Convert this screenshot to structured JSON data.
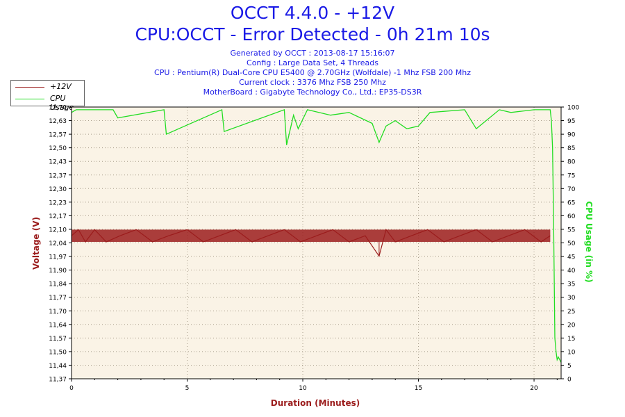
{
  "header": {
    "title": "OCCT 4.4.0 - +12V",
    "subtitle": "CPU:OCCT - Error Detected - 0h 21m 10s",
    "info_lines": [
      "Generated by OCCT : 2013-08-17 15:16:07",
      "Config : Large Data Set, 4 Threads",
      "CPU : Pentium(R) Dual-Core CPU E5400 @ 2.70GHz (Wolfdale) -1 Mhz FSB 200 Mhz",
      "Current clock : 3376 Mhz FSB 250 Mhz",
      "MotherBoard : Gigabyte Technology Co., Ltd.: EP35-DS3R"
    ]
  },
  "legend": {
    "items": [
      {
        "label": "+12V",
        "color": "#9b1c1c"
      },
      {
        "label": "CPU Usage",
        "color": "#22dd22"
      }
    ]
  },
  "colors": {
    "voltage": "#9b1c1c",
    "cpu": "#22dd22",
    "plot_bg": "#faf3e6",
    "grid": "#a89e8c",
    "title": "#1a1ae6"
  },
  "chart_data": {
    "type": "line",
    "xlabel": "Duration (Minutes)",
    "ylabel_left": "Voltage (V)",
    "ylabel_right": "CPU Usage (in %)",
    "xlim": [
      0,
      21.17
    ],
    "x_ticks": [
      0,
      5,
      10,
      15,
      20
    ],
    "ylim_left": [
      11.37,
      12.7
    ],
    "y_ticks_left": [
      "12,70",
      "12,63",
      "12,57",
      "12,50",
      "12,43",
      "12,37",
      "12,30",
      "12,23",
      "12,17",
      "12,10",
      "12,04",
      "11,97",
      "11,90",
      "11,84",
      "11,77",
      "11,70",
      "11,64",
      "11,57",
      "11,50",
      "11,44",
      "11,37"
    ],
    "ylim_right": [
      0,
      100
    ],
    "y_ticks_right": [
      100,
      95,
      90,
      85,
      80,
      75,
      70,
      65,
      60,
      55,
      50,
      45,
      40,
      35,
      30,
      25,
      20,
      15,
      10,
      5,
      0
    ],
    "grid": true,
    "legend_position": "top-left",
    "series": [
      {
        "name": "+12V",
        "units": "V",
        "x": [
          0,
          0.3,
          0.6,
          1.0,
          1.5,
          2.1,
          2.8,
          3.5,
          4.2,
          5.0,
          5.7,
          6.4,
          7.1,
          7.8,
          8.5,
          9.2,
          9.9,
          10.6,
          11.3,
          12.0,
          12.7,
          13.3,
          13.6,
          14.0,
          14.7,
          15.4,
          16.1,
          16.8,
          17.5,
          18.2,
          18.9,
          19.6,
          20.3,
          20.7
        ],
        "values": [
          12.07,
          12.1,
          12.04,
          12.1,
          12.04,
          12.07,
          12.1,
          12.04,
          12.07,
          12.1,
          12.04,
          12.07,
          12.1,
          12.04,
          12.07,
          12.1,
          12.04,
          12.07,
          12.1,
          12.04,
          12.07,
          11.97,
          12.1,
          12.04,
          12.07,
          12.1,
          12.04,
          12.07,
          12.1,
          12.04,
          12.07,
          12.1,
          12.04,
          12.07
        ],
        "band": [
          12.04,
          12.1
        ]
      },
      {
        "name": "CPU Usage",
        "units": "%",
        "x": [
          0,
          0.2,
          1.8,
          2.0,
          4.0,
          4.1,
          6.5,
          6.6,
          9.2,
          9.3,
          9.6,
          9.8,
          10.2,
          11.2,
          12.0,
          13.0,
          13.3,
          13.6,
          14.0,
          14.5,
          15.0,
          15.5,
          17.0,
          17.5,
          18.5,
          19.0,
          20.0,
          20.7,
          20.75,
          20.8,
          20.85,
          20.9,
          20.95,
          21.0,
          21.05,
          21.17
        ],
        "values": [
          98,
          99,
          99,
          96,
          99,
          90,
          99,
          91,
          99,
          86,
          97,
          92,
          99,
          97,
          98,
          94,
          87,
          93,
          95,
          92,
          93,
          98,
          99,
          92,
          99,
          98,
          99,
          99,
          95,
          85,
          55,
          15,
          10,
          7,
          8,
          6
        ]
      }
    ]
  }
}
